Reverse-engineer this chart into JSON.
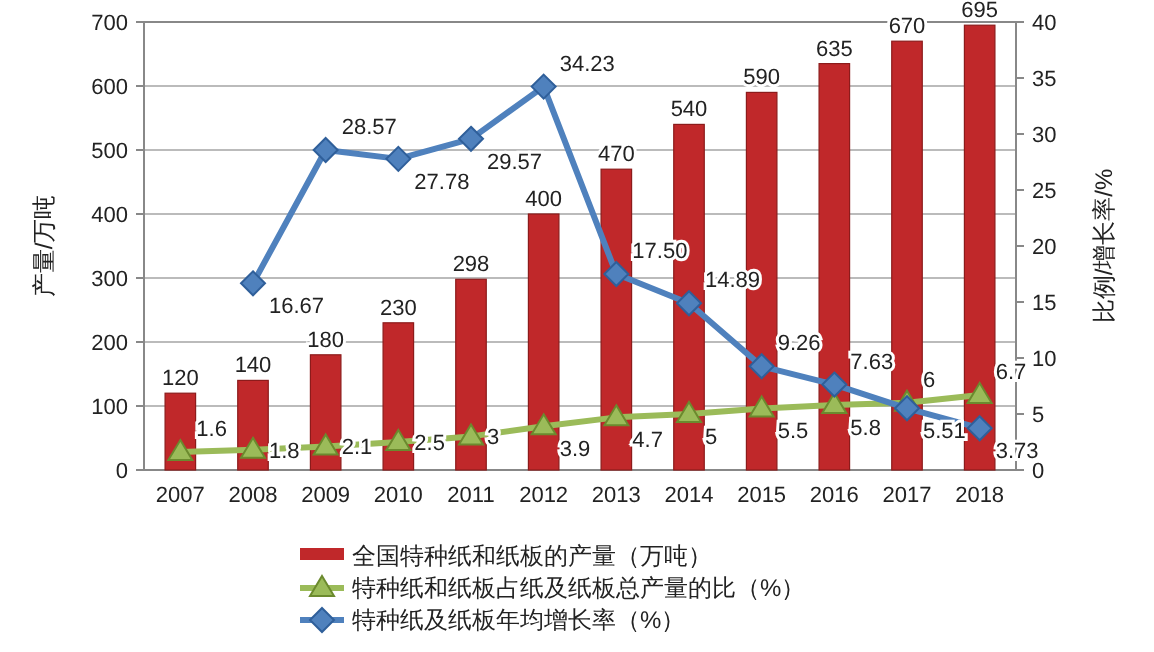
{
  "chart_data": {
    "type": "bar",
    "categories": [
      "2007",
      "2008",
      "2009",
      "2010",
      "2011",
      "2012",
      "2013",
      "2014",
      "2015",
      "2016",
      "2017",
      "2018"
    ],
    "ylabel": "产量/万吨",
    "y2label": "比例/增长率/%",
    "ylim": [
      0,
      700
    ],
    "yticks": [
      0,
      100,
      200,
      300,
      400,
      500,
      600,
      700
    ],
    "y2lim": [
      0,
      40
    ],
    "y2ticks": [
      0,
      5,
      10,
      15,
      20,
      25,
      30,
      35,
      40
    ],
    "grid": "y",
    "legend": "bottom",
    "series": [
      {
        "name": "全国特种纸和纸板的产量（万吨）",
        "color": "#c0282a",
        "values": [
          120,
          140,
          180,
          230,
          298,
          400,
          470,
          540,
          590,
          635,
          670,
          695
        ],
        "value_labels": [
          "120",
          "140",
          "180",
          "230",
          "298",
          "400",
          "470",
          "540",
          "590",
          "635",
          "670",
          "695"
        ]
      },
      {
        "name": "特种纸和纸板占纸及纸板总产量的比（%）",
        "type": "line",
        "axis": "y2",
        "color": "#9bbb59",
        "marker": "triangle",
        "values": [
          1.6,
          1.8,
          2.1,
          2.5,
          3,
          3.9,
          4.7,
          5,
          5.5,
          5.8,
          6,
          6.7
        ],
        "value_labels": [
          "1.6",
          "1.8",
          "2.1",
          "2.5",
          "3",
          "3.9",
          "4.7",
          "5",
          "5.5",
          "5.8",
          "6",
          "6.7"
        ]
      },
      {
        "name": "特种纸及纸板年均增长率（%）",
        "type": "line",
        "axis": "y2",
        "color": "#4f81bd",
        "marker": "diamond",
        "values": [
          null,
          16.67,
          28.57,
          27.78,
          29.57,
          34.23,
          17.5,
          14.89,
          9.26,
          7.63,
          5.51,
          3.73
        ],
        "value_labels": [
          null,
          "16.67",
          "28.57",
          "27.78",
          "29.57",
          "34.23",
          "17.50",
          "14.89",
          "9.26",
          "7.63",
          "5.51",
          "3.73"
        ]
      }
    ]
  }
}
